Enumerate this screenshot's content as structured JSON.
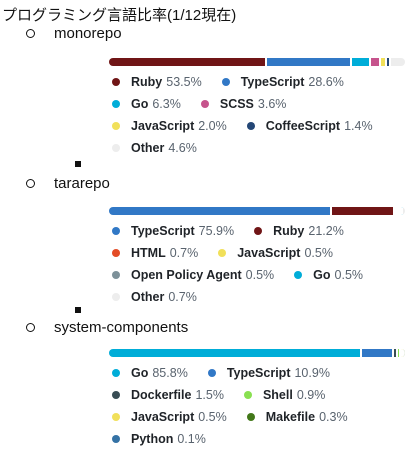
{
  "title": "プログラミング言語比率(1/12現在)",
  "repos": [
    {
      "name": "monorepo",
      "languages": [
        {
          "name": "Ruby",
          "percent": "53.5%",
          "value": 53.5,
          "color": "#701516"
        },
        {
          "name": "TypeScript",
          "percent": "28.6%",
          "value": 28.6,
          "color": "#3178c6"
        },
        {
          "name": "Go",
          "percent": "6.3%",
          "value": 6.3,
          "color": "#00add8"
        },
        {
          "name": "SCSS",
          "percent": "3.6%",
          "value": 3.6,
          "color": "#c6538c"
        },
        {
          "name": "JavaScript",
          "percent": "2.0%",
          "value": 2.0,
          "color": "#f1e05a"
        },
        {
          "name": "CoffeeScript",
          "percent": "1.4%",
          "value": 1.4,
          "color": "#244776"
        },
        {
          "name": "Other",
          "percent": "4.6%",
          "value": 4.6,
          "color": "#ededed"
        }
      ]
    },
    {
      "name": "tararepo",
      "languages": [
        {
          "name": "TypeScript",
          "percent": "75.9%",
          "value": 75.9,
          "color": "#3178c6"
        },
        {
          "name": "Ruby",
          "percent": "21.2%",
          "value": 21.2,
          "color": "#701516"
        },
        {
          "name": "HTML",
          "percent": "0.7%",
          "value": 0.7,
          "color": "#e34c26"
        },
        {
          "name": "JavaScript",
          "percent": "0.5%",
          "value": 0.5,
          "color": "#f1e05a"
        },
        {
          "name": "Open Policy Agent",
          "percent": "0.5%",
          "value": 0.5,
          "color": "#7d9199"
        },
        {
          "name": "Go",
          "percent": "0.5%",
          "value": 0.5,
          "color": "#00add8"
        },
        {
          "name": "Other",
          "percent": "0.7%",
          "value": 0.7,
          "color": "#ededed"
        }
      ]
    },
    {
      "name": "system-components",
      "languages": [
        {
          "name": "Go",
          "percent": "85.8%",
          "value": 85.8,
          "color": "#00add8"
        },
        {
          "name": "TypeScript",
          "percent": "10.9%",
          "value": 10.9,
          "color": "#3178c6"
        },
        {
          "name": "Dockerfile",
          "percent": "1.5%",
          "value": 1.5,
          "color": "#384d54"
        },
        {
          "name": "Shell",
          "percent": "0.9%",
          "value": 0.9,
          "color": "#89e051"
        },
        {
          "name": "JavaScript",
          "percent": "0.5%",
          "value": 0.5,
          "color": "#f1e05a"
        },
        {
          "name": "Makefile",
          "percent": "0.3%",
          "value": 0.3,
          "color": "#427819"
        },
        {
          "name": "Python",
          "percent": "0.1%",
          "value": 0.1,
          "color": "#3572a5"
        }
      ]
    }
  ]
}
